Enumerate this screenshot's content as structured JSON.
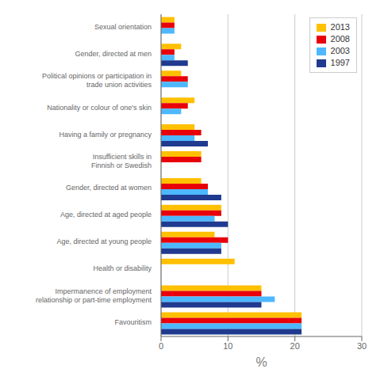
{
  "chart_data": {
    "type": "bar",
    "orientation": "horizontal",
    "categories": [
      "Favouritism",
      "Impermanence of employment\nrelationship or part-time employment",
      "Health or disability",
      "Age, directed at young people",
      "Age, directed at aged people",
      "Gender, directed at women",
      "Insufficient skills in\nFinnish or Swedish",
      "Having a family or pregnancy",
      "Nationality or colour of one's skin",
      "Political opinions or participation in\ntrade union activities",
      "Gender, directed at men",
      "Sexual orientation"
    ],
    "series": [
      {
        "name": "2013",
        "color": "#FFC000",
        "values": [
          21,
          15,
          11,
          8,
          9,
          6,
          6,
          5,
          5,
          3,
          3,
          2
        ]
      },
      {
        "name": "2008",
        "color": "#E8000A",
        "values": [
          21,
          15,
          0,
          10,
          9,
          7,
          6,
          6,
          4,
          4,
          2,
          2
        ]
      },
      {
        "name": "2003",
        "color": "#4DB8FF",
        "values": [
          21,
          17,
          0,
          9,
          8,
          7,
          0,
          5,
          3,
          4,
          2,
          2
        ]
      },
      {
        "name": "1997",
        "color": "#1F3A8F",
        "values": [
          21,
          15,
          0,
          9,
          10,
          9,
          0,
          7,
          0,
          0,
          4,
          0
        ]
      }
    ],
    "xlabel": "%",
    "xlim": [
      0,
      30
    ],
    "xticks": [
      0,
      10,
      20,
      30
    ],
    "grid": true,
    "legend": "upper right"
  }
}
